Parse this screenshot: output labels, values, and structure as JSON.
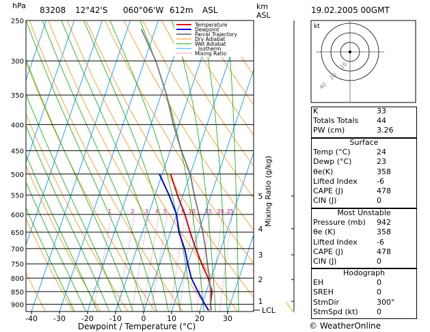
{
  "header": {
    "left_unit": "hPa",
    "station": "83208",
    "lat": "12°42'S",
    "lon": "060°06'W",
    "elev": "612m",
    "elev_ref": "ASL",
    "right_unit": "km",
    "right_unit2": "ASL",
    "datetime": "19.02.2005  00GMT"
  },
  "skewt": {
    "pressure_levels": [
      "250",
      "300",
      "350",
      "400",
      "450",
      "500",
      "550",
      "600",
      "650",
      "700",
      "750",
      "800",
      "850",
      "900"
    ],
    "temp_ticks": [
      "-40",
      "-30",
      "-20",
      "-10",
      "0",
      "10",
      "20",
      "30"
    ],
    "km_ticks": [
      "5",
      "4",
      "3",
      "2",
      "1"
    ],
    "lcl_label": "LCL",
    "xlabel": "Dewpoint / Temperature (°C)",
    "mixing_ratio_label": "Mixing Ratio (g/kg)",
    "mixing_ratio_values": [
      "1",
      "2",
      "3",
      "4",
      "5",
      "8",
      "10",
      "15",
      "20",
      "25"
    ],
    "legend": [
      "Temperature",
      "Dewpoint",
      "Parcel Trajectory",
      "Dry Adiabat",
      "Wet Adiabat",
      "Isotherm",
      "Mixing Ratio"
    ],
    "colors": {
      "temperature": "#dd0000",
      "dewpoint": "#0000dd",
      "parcel": "#808080",
      "dry_adiabat": "#ff8c00",
      "wet_adiabat": "#00aa00",
      "isotherm": "#1ea0ff",
      "mixing_ratio": "#cc0077"
    }
  },
  "chart_data": {
    "type": "line",
    "title": "",
    "xlabel": "Dewpoint / Temperature (°C)",
    "ylabel": "hPa",
    "xlim": [
      -40,
      35
    ],
    "ylim": [
      250,
      930
    ],
    "y_scale": "log",
    "series": [
      {
        "name": "Temperature",
        "points": [
          [
            24,
            925
          ],
          [
            23,
            900
          ],
          [
            22,
            850
          ],
          [
            19,
            800
          ],
          [
            15,
            750
          ],
          [
            11,
            700
          ],
          [
            7,
            650
          ],
          [
            3,
            600
          ],
          [
            -2,
            550
          ],
          [
            -7,
            500
          ]
        ]
      },
      {
        "name": "Dewpoint",
        "points": [
          [
            23,
            925
          ],
          [
            21,
            900
          ],
          [
            17,
            850
          ],
          [
            13,
            800
          ],
          [
            10,
            750
          ],
          [
            7,
            700
          ],
          [
            3,
            650
          ],
          [
            0,
            600
          ],
          [
            -5,
            550
          ],
          [
            -11,
            500
          ]
        ]
      },
      {
        "name": "Parcel Trajectory",
        "points": [
          [
            24,
            925
          ],
          [
            23,
            900
          ],
          [
            21.5,
            850
          ],
          [
            19.5,
            800
          ],
          [
            17,
            750
          ],
          [
            14.5,
            700
          ],
          [
            11.5,
            650
          ],
          [
            8,
            600
          ],
          [
            4,
            550
          ],
          [
            0,
            500
          ],
          [
            -6,
            450
          ],
          [
            -12,
            400
          ],
          [
            -18,
            350
          ],
          [
            -26,
            300
          ],
          [
            -35,
            260
          ]
        ]
      }
    ]
  },
  "hodograph": {
    "label": "kt",
    "rings": [
      "10",
      "20",
      "40"
    ]
  },
  "indices": {
    "top": [
      {
        "label": "K",
        "value": "33"
      },
      {
        "label": "Totals Totals",
        "value": "44"
      },
      {
        "label": "PW (cm)",
        "value": "3.26"
      }
    ],
    "surface_title": "Surface",
    "surface": [
      {
        "label": "Temp (°C)",
        "value": "24"
      },
      {
        "label": "Dewp (°C)",
        "value": "23"
      },
      {
        "label": "θe(K)",
        "value": "358"
      },
      {
        "label": "Lifted Index",
        "value": "-6"
      },
      {
        "label": "CAPE (J)",
        "value": "478"
      },
      {
        "label": "CIN (J)",
        "value": "0"
      }
    ],
    "mu_title": "Most Unstable",
    "mu": [
      {
        "label": "Pressure (mb)",
        "value": "942"
      },
      {
        "label": "θe (K)",
        "value": "358"
      },
      {
        "label": "Lifted Index",
        "value": "-6"
      },
      {
        "label": "CAPE (J)",
        "value": "478"
      },
      {
        "label": "CIN (J)",
        "value": "0"
      }
    ],
    "hodo_title": "Hodograph",
    "hodo": [
      {
        "label": "EH",
        "value": "0"
      },
      {
        "label": "SREH",
        "value": "0"
      },
      {
        "label": "StmDir",
        "value": "300°"
      },
      {
        "label": "StmSpd (kt)",
        "value": "0"
      }
    ]
  },
  "footer": {
    "copyright": "© WeatherOnline"
  }
}
